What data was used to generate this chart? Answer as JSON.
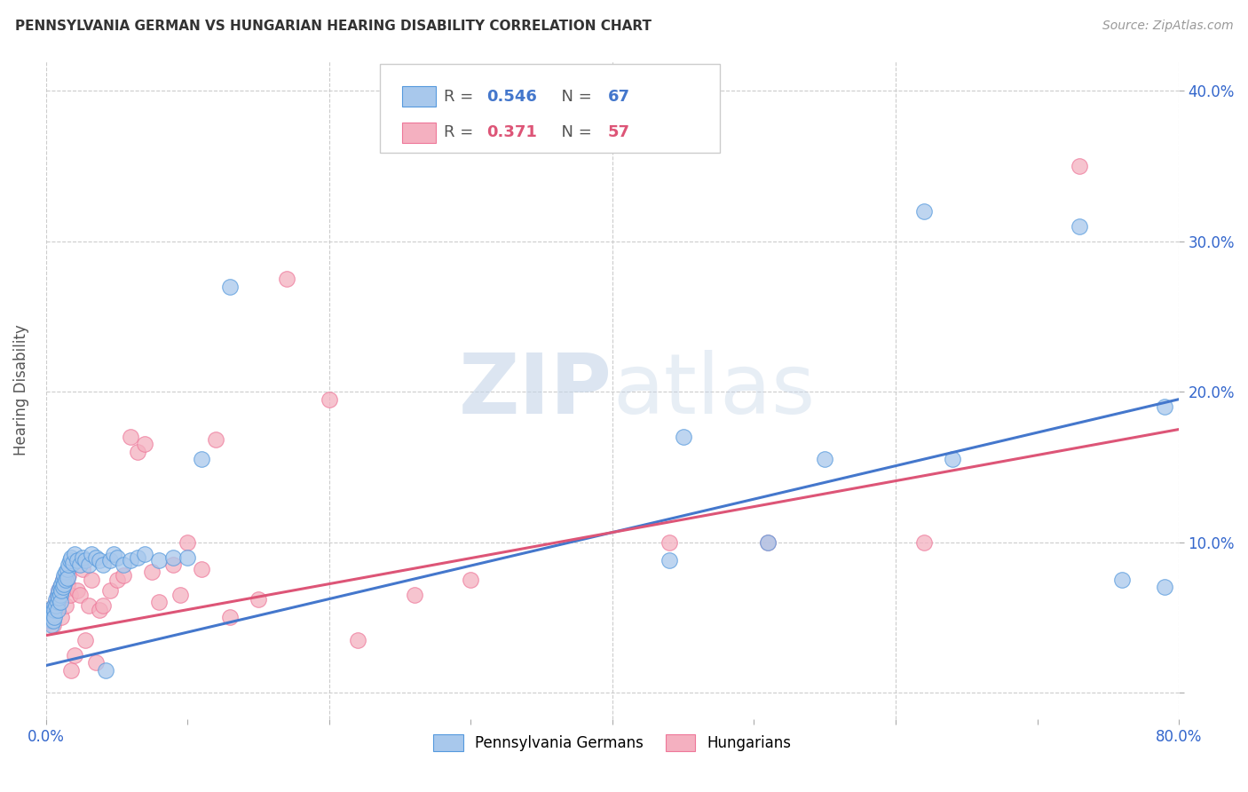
{
  "title": "PENNSYLVANIA GERMAN VS HUNGARIAN HEARING DISABILITY CORRELATION CHART",
  "source": "Source: ZipAtlas.com",
  "ylabel": "Hearing Disability",
  "xlim": [
    0.0,
    0.8
  ],
  "ylim": [
    -0.018,
    0.42
  ],
  "xticks": [
    0.0,
    0.1,
    0.2,
    0.3,
    0.4,
    0.5,
    0.6,
    0.7,
    0.8
  ],
  "xticklabels": [
    "0.0%",
    "",
    "",
    "",
    "",
    "",
    "",
    "",
    "80.0%"
  ],
  "yticks": [
    0.0,
    0.1,
    0.2,
    0.3,
    0.4
  ],
  "yticklabels": [
    "",
    "10.0%",
    "20.0%",
    "30.0%",
    "40.0%"
  ],
  "blue_R": 0.546,
  "blue_N": 67,
  "pink_R": 0.371,
  "pink_N": 57,
  "blue_color": "#A8C8EC",
  "pink_color": "#F4B0C0",
  "blue_edge_color": "#5599DD",
  "pink_edge_color": "#EE7799",
  "blue_line_color": "#4477CC",
  "pink_line_color": "#DD5577",
  "watermark_color": "#D0DFF0",
  "background_color": "#ffffff",
  "grid_color": "#cccccc",
  "blue_x": [
    0.002,
    0.003,
    0.004,
    0.004,
    0.005,
    0.005,
    0.005,
    0.006,
    0.006,
    0.006,
    0.007,
    0.007,
    0.008,
    0.008,
    0.008,
    0.009,
    0.009,
    0.01,
    0.01,
    0.01,
    0.011,
    0.011,
    0.012,
    0.012,
    0.013,
    0.013,
    0.014,
    0.014,
    0.015,
    0.015,
    0.016,
    0.017,
    0.018,
    0.019,
    0.02,
    0.022,
    0.024,
    0.026,
    0.028,
    0.03,
    0.032,
    0.035,
    0.038,
    0.04,
    0.042,
    0.045,
    0.048,
    0.05,
    0.055,
    0.06,
    0.065,
    0.07,
    0.08,
    0.09,
    0.1,
    0.11,
    0.13,
    0.44,
    0.45,
    0.51,
    0.55,
    0.62,
    0.64,
    0.73,
    0.76,
    0.79,
    0.79
  ],
  "blue_y": [
    0.055,
    0.05,
    0.048,
    0.045,
    0.055,
    0.052,
    0.048,
    0.058,
    0.055,
    0.05,
    0.062,
    0.058,
    0.065,
    0.06,
    0.055,
    0.068,
    0.063,
    0.07,
    0.065,
    0.06,
    0.072,
    0.068,
    0.075,
    0.07,
    0.078,
    0.072,
    0.08,
    0.075,
    0.082,
    0.076,
    0.085,
    0.088,
    0.09,
    0.086,
    0.092,
    0.088,
    0.085,
    0.09,
    0.088,
    0.085,
    0.092,
    0.09,
    0.088,
    0.085,
    0.015,
    0.088,
    0.092,
    0.09,
    0.085,
    0.088,
    0.09,
    0.092,
    0.088,
    0.09,
    0.09,
    0.155,
    0.27,
    0.088,
    0.17,
    0.1,
    0.155,
    0.32,
    0.155,
    0.31,
    0.075,
    0.07,
    0.19
  ],
  "pink_x": [
    0.002,
    0.003,
    0.004,
    0.005,
    0.005,
    0.006,
    0.006,
    0.007,
    0.007,
    0.008,
    0.008,
    0.009,
    0.009,
    0.01,
    0.01,
    0.011,
    0.012,
    0.013,
    0.014,
    0.015,
    0.016,
    0.017,
    0.018,
    0.02,
    0.022,
    0.024,
    0.026,
    0.028,
    0.03,
    0.032,
    0.035,
    0.038,
    0.04,
    0.045,
    0.05,
    0.055,
    0.06,
    0.065,
    0.07,
    0.075,
    0.08,
    0.09,
    0.095,
    0.1,
    0.11,
    0.12,
    0.13,
    0.15,
    0.17,
    0.2,
    0.22,
    0.26,
    0.3,
    0.44,
    0.51,
    0.62,
    0.73
  ],
  "pink_y": [
    0.052,
    0.048,
    0.055,
    0.05,
    0.045,
    0.058,
    0.052,
    0.06,
    0.055,
    0.065,
    0.058,
    0.068,
    0.062,
    0.07,
    0.064,
    0.05,
    0.075,
    0.068,
    0.058,
    0.072,
    0.078,
    0.065,
    0.015,
    0.025,
    0.068,
    0.065,
    0.082,
    0.035,
    0.058,
    0.075,
    0.02,
    0.055,
    0.058,
    0.068,
    0.075,
    0.078,
    0.17,
    0.16,
    0.165,
    0.08,
    0.06,
    0.085,
    0.065,
    0.1,
    0.082,
    0.168,
    0.05,
    0.062,
    0.275,
    0.195,
    0.035,
    0.065,
    0.075,
    0.1,
    0.1,
    0.1,
    0.35
  ],
  "blue_line_x0": 0.0,
  "blue_line_x1": 0.8,
  "blue_line_y0": 0.018,
  "blue_line_y1": 0.195,
  "pink_line_x0": 0.0,
  "pink_line_x1": 0.8,
  "pink_line_y0": 0.038,
  "pink_line_y1": 0.175
}
